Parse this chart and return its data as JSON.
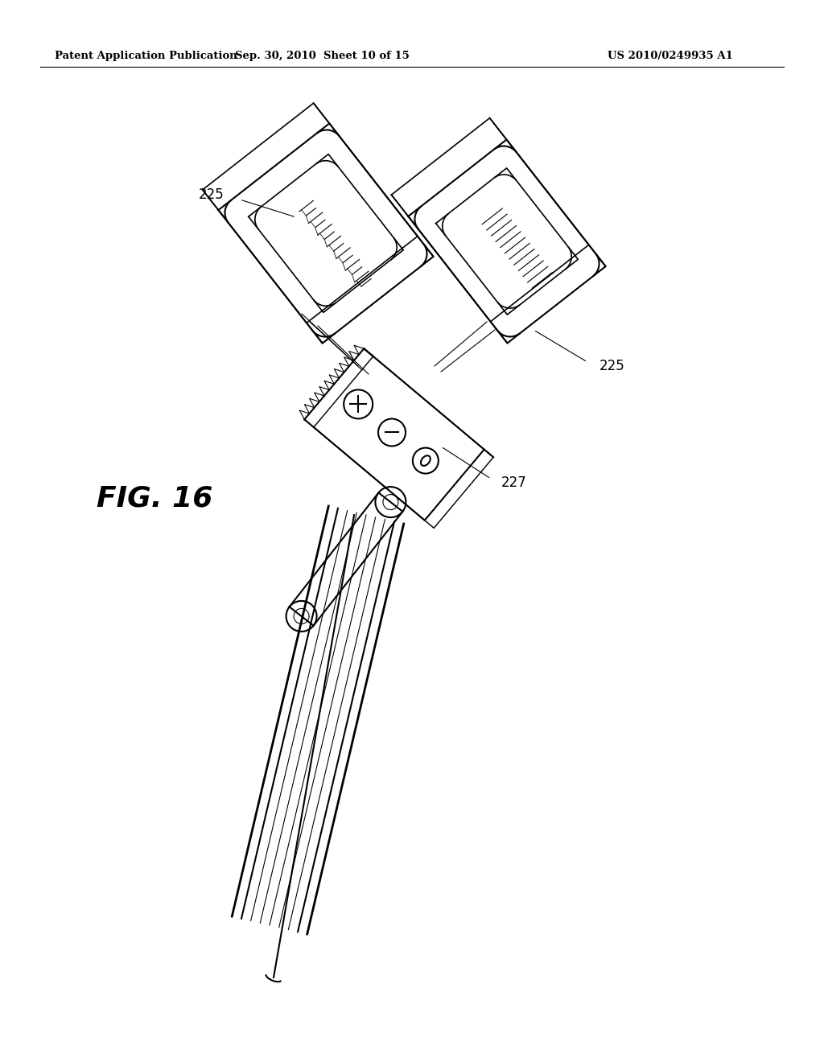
{
  "background_color": "#ffffff",
  "header_text_left": "Patent Application Publication",
  "header_text_mid": "Sep. 30, 2010  Sheet 10 of 15",
  "header_text_right": "US 2010/0249935 A1",
  "fig_label": "FIG. 16",
  "label_225_left": "225",
  "label_225_right": "225",
  "label_227": "227",
  "lw": 1.5,
  "lw_thin": 0.8,
  "lw_thick": 2.0
}
